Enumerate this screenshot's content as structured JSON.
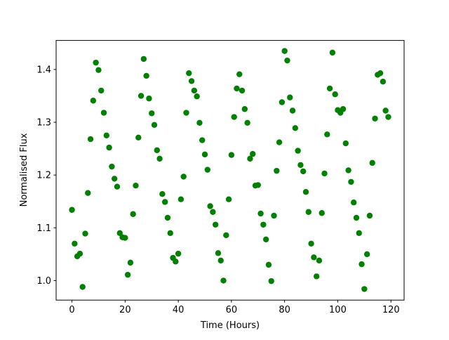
{
  "chart_data": {
    "type": "scatter",
    "x_label": "Time (Hours)",
    "y_label": "Normalised Flux",
    "x": [
      0,
      1,
      2,
      3,
      4,
      5,
      6,
      7,
      8,
      9,
      10,
      11,
      12,
      13,
      14,
      15,
      16,
      17,
      18,
      19,
      20,
      21,
      22,
      23,
      24,
      25,
      26,
      27,
      28,
      29,
      30,
      31,
      32,
      33,
      34,
      35,
      36,
      37,
      38,
      39,
      40,
      41,
      42,
      43,
      44,
      45,
      46,
      47,
      48,
      49,
      50,
      51,
      52,
      53,
      54,
      55,
      56,
      57,
      58,
      59,
      60,
      61,
      62,
      63,
      64,
      65,
      66,
      67,
      68,
      69,
      70,
      71,
      72,
      73,
      74,
      75,
      76,
      77,
      78,
      79,
      80,
      81,
      82,
      83,
      84,
      85,
      86,
      87,
      88,
      89,
      90,
      91,
      92,
      93,
      94,
      95,
      96,
      97,
      98,
      99,
      100,
      101,
      102,
      103,
      104,
      105,
      106,
      107,
      108,
      109,
      110,
      111,
      112,
      113,
      114,
      115,
      116,
      117,
      118,
      119
    ],
    "values": [
      1.134,
      1.07,
      1.046,
      1.051,
      0.988,
      1.089,
      1.166,
      1.268,
      1.341,
      1.413,
      1.399,
      1.36,
      1.318,
      1.275,
      1.252,
      1.216,
      1.193,
      1.178,
      1.09,
      1.082,
      1.081,
      1.011,
      1.034,
      1.126,
      1.18,
      1.271,
      1.35,
      1.42,
      1.388,
      1.345,
      1.317,
      1.295,
      1.247,
      1.231,
      1.164,
      1.149,
      1.119,
      1.09,
      1.043,
      1.036,
      1.051,
      1.154,
      1.197,
      1.318,
      1.393,
      1.378,
      1.36,
      1.349,
      1.299,
      1.266,
      1.239,
      1.21,
      1.141,
      1.13,
      1.106,
      1.052,
      1.038,
      1.0,
      1.086,
      1.154,
      1.238,
      1.31,
      1.364,
      1.391,
      1.36,
      1.325,
      1.299,
      1.231,
      1.24,
      1.18,
      1.181,
      1.127,
      1.106,
      1.078,
      1.03,
      0.999,
      1.123,
      1.208,
      1.262,
      1.338,
      1.435,
      1.417,
      1.347,
      1.322,
      1.289,
      1.246,
      1.219,
      1.207,
      1.168,
      1.13,
      1.07,
      1.044,
      1.008,
      1.038,
      1.128,
      1.203,
      1.277,
      1.364,
      1.432,
      1.353,
      1.323,
      1.318,
      1.325,
      1.26,
      1.209,
      1.187,
      1.148,
      1.119,
      1.09,
      1.031,
      0.984,
      1.05,
      1.123,
      1.223,
      1.307,
      1.39,
      1.393,
      1.377,
      1.322,
      1.31
    ],
    "color": "#008000",
    "xlim": [
      -5.95,
      124.95
    ],
    "ylim": [
      0.963,
      1.455
    ],
    "xticks": [
      0,
      20,
      40,
      60,
      80,
      100,
      120
    ],
    "yticks": [
      {
        "value": 1,
        "label": "1.0"
      },
      1.1,
      1.2,
      1.3,
      1.4
    ],
    "grid": false
  }
}
